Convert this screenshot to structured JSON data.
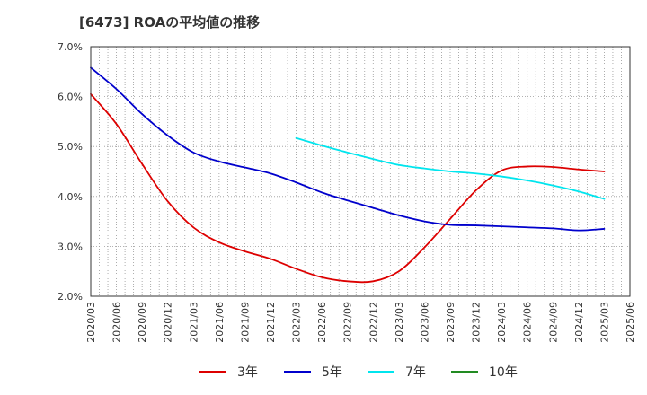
{
  "chart_data": {
    "type": "line",
    "title": "[6473]  ROAの平均値の推移",
    "xlabel": "",
    "ylabel": "",
    "x": [
      "2020/03",
      "2020/06",
      "2020/09",
      "2020/12",
      "2021/03",
      "2021/06",
      "2021/09",
      "2021/12",
      "2022/03",
      "2022/06",
      "2022/09",
      "2022/12",
      "2023/03",
      "2023/06",
      "2023/09",
      "2023/12",
      "2024/03",
      "2024/06",
      "2024/09",
      "2024/12",
      "2025/03",
      "2025/06"
    ],
    "y_ticks": [
      "2.0%",
      "3.0%",
      "4.0%",
      "5.0%",
      "6.0%",
      "7.0%"
    ],
    "ylim": [
      2.0,
      7.0
    ],
    "grid": true,
    "legend_position": "bottom",
    "series": [
      {
        "name": "3年",
        "color": "#dd0000",
        "values": [
          6.05,
          5.45,
          4.65,
          3.9,
          3.38,
          3.08,
          2.9,
          2.75,
          2.55,
          2.38,
          2.3,
          2.3,
          2.5,
          2.98,
          3.55,
          4.12,
          4.52,
          4.6,
          4.59,
          4.54,
          4.5,
          null
        ]
      },
      {
        "name": "5年",
        "color": "#0000cc",
        "values": [
          6.58,
          6.15,
          5.65,
          5.22,
          4.88,
          4.7,
          4.58,
          4.46,
          4.28,
          4.08,
          3.92,
          3.77,
          3.62,
          3.5,
          3.43,
          3.42,
          3.4,
          3.38,
          3.36,
          3.32,
          3.35,
          null
        ]
      },
      {
        "name": "7年",
        "color": "#00e5ee",
        "values": [
          null,
          null,
          null,
          null,
          null,
          null,
          null,
          null,
          5.17,
          5.02,
          4.88,
          4.75,
          4.63,
          4.56,
          4.5,
          4.46,
          4.4,
          4.32,
          4.22,
          4.1,
          3.95,
          null
        ]
      },
      {
        "name": "10年",
        "color": "#228b22",
        "values": [
          null,
          null,
          null,
          null,
          null,
          null,
          null,
          null,
          null,
          null,
          null,
          null,
          null,
          null,
          null,
          null,
          null,
          null,
          null,
          null,
          null,
          null
        ]
      }
    ]
  }
}
